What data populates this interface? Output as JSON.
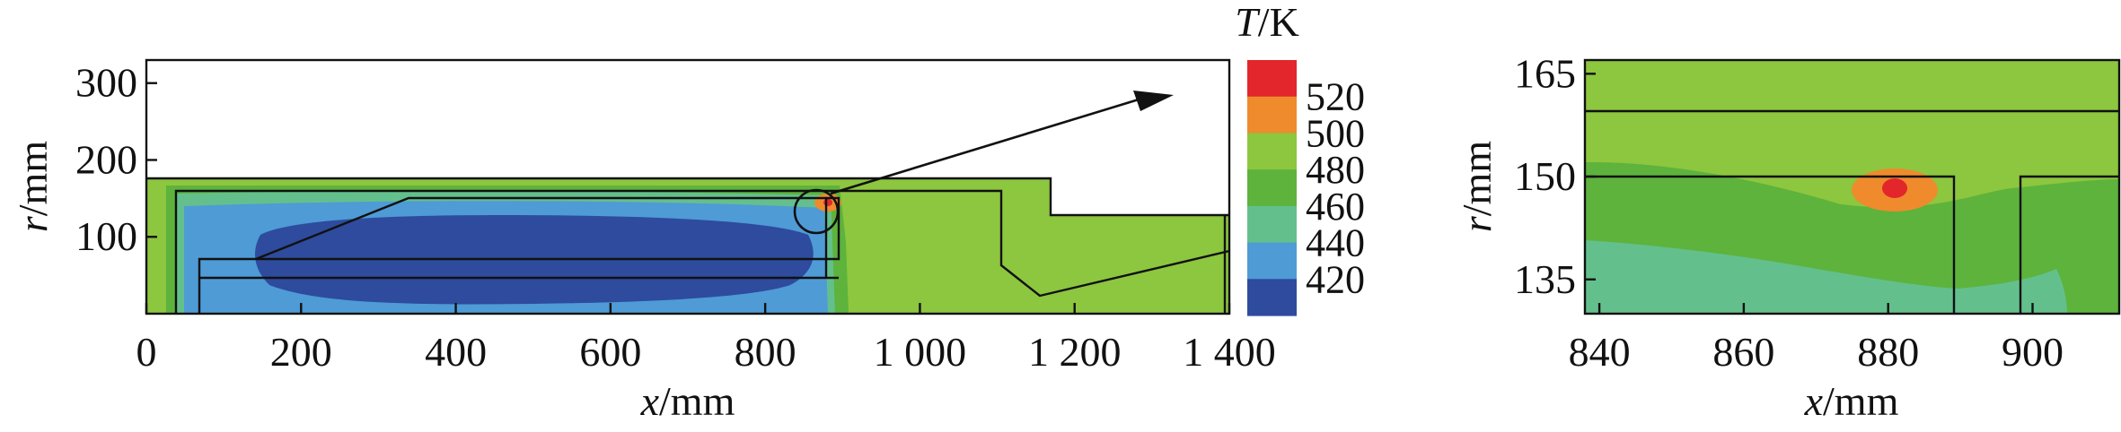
{
  "colorbar": {
    "title_var": "T",
    "title_unit": "/K",
    "levels": [
      {
        "label": "520",
        "color": "#e3262b"
      },
      {
        "label": "500",
        "color": "#ef8b2c"
      },
      {
        "label": "480",
        "color": "#8dc63f"
      },
      {
        "label": "460",
        "color": "#5db33c"
      },
      {
        "label": "440",
        "color": "#63c08d"
      },
      {
        "label": "420",
        "color": "#4e9bd6"
      },
      {
        "label": "",
        "color": "#2e4b9e"
      }
    ]
  },
  "chart_data": [
    {
      "type": "heatmap",
      "panel": "overview",
      "xlabel_var": "x",
      "xlabel_unit": "/mm",
      "ylabel_var": "r",
      "ylabel_unit": "/mm",
      "xlim": [
        0,
        1400
      ],
      "ylim": [
        0,
        330
      ],
      "xticks": [
        {
          "value": 0,
          "label": "0"
        },
        {
          "value": 200,
          "label": "200"
        },
        {
          "value": 400,
          "label": "400"
        },
        {
          "value": 600,
          "label": "600"
        },
        {
          "value": 800,
          "label": "800"
        },
        {
          "value": 1000,
          "label": "1 000"
        },
        {
          "value": 1200,
          "label": "1 200"
        },
        {
          "value": 1400,
          "label": "1 400"
        }
      ],
      "yticks": [
        {
          "value": 100,
          "label": "100"
        },
        {
          "value": 200,
          "label": "200"
        },
        {
          "value": 300,
          "label": "300"
        }
      ],
      "temperature_range_K": [
        410,
        525
      ],
      "hotspot": {
        "x": 880,
        "r": 148,
        "T": 522
      }
    },
    {
      "type": "heatmap",
      "panel": "zoom",
      "xlabel_var": "x",
      "xlabel_unit": "/mm",
      "ylabel_var": "r",
      "ylabel_unit": "/mm",
      "xlim": [
        838,
        912
      ],
      "ylim": [
        130,
        167
      ],
      "xticks": [
        {
          "value": 840,
          "label": "840"
        },
        {
          "value": 860,
          "label": "860"
        },
        {
          "value": 880,
          "label": "880"
        },
        {
          "value": 900,
          "label": "900"
        }
      ],
      "yticks": [
        {
          "value": 135,
          "label": "135"
        },
        {
          "value": 150,
          "label": "150"
        },
        {
          "value": 165,
          "label": "165"
        }
      ],
      "hotspot": {
        "x": 881,
        "r": 148,
        "T": 522
      }
    }
  ]
}
